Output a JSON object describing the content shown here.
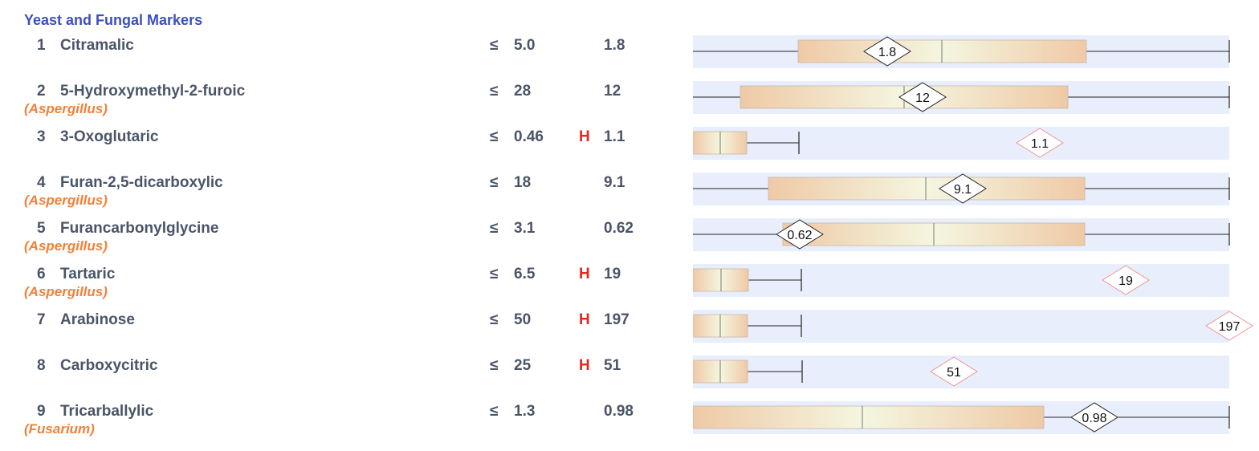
{
  "section_title": "Yeast and Fungal Markers",
  "lte_symbol": "≤",
  "colors": {
    "title": "#3a4fc0",
    "text": "#4a5568",
    "organism": "#f0813a",
    "flag_high": "#e02a1f",
    "band": "#e8eefc",
    "box_outer": "#efc9a6",
    "box_inner": "#f4f6e0"
  },
  "rows": [
    {
      "num": "1",
      "name": "Citramalic",
      "organism": "",
      "ref": "5.0",
      "flag": "",
      "value": "1.8",
      "high": false
    },
    {
      "num": "2",
      "name": "5-Hydroxymethyl-2-furoic",
      "organism": "(Aspergillus)",
      "ref": "28",
      "flag": "",
      "value": "12",
      "high": false
    },
    {
      "num": "3",
      "name": "3-Oxoglutaric",
      "organism": "",
      "ref": "0.46",
      "flag": "H",
      "value": "1.1",
      "high": true
    },
    {
      "num": "4",
      "name": "Furan-2,5-dicarboxylic",
      "organism": "(Aspergillus)",
      "ref": "18",
      "flag": "",
      "value": "9.1",
      "high": false
    },
    {
      "num": "5",
      "name": "Furancarbonylglycine",
      "organism": "(Aspergillus)",
      "ref": "3.1",
      "flag": "",
      "value": "0.62",
      "high": false
    },
    {
      "num": "6",
      "name": "Tartaric",
      "organism": "(Aspergillus)",
      "ref": "6.5",
      "flag": "H",
      "value": "19",
      "high": true
    },
    {
      "num": "7",
      "name": "Arabinose",
      "organism": "",
      "ref": "50",
      "flag": "H",
      "value": "197",
      "high": true
    },
    {
      "num": "8",
      "name": "Carboxycitric",
      "organism": "",
      "ref": "25",
      "flag": "H",
      "value": "51",
      "high": true
    },
    {
      "num": "9",
      "name": "Tricarballylic",
      "organism": "(Fusarium)",
      "ref": "1.3",
      "flag": "",
      "value": "0.98",
      "high": false
    }
  ]
}
